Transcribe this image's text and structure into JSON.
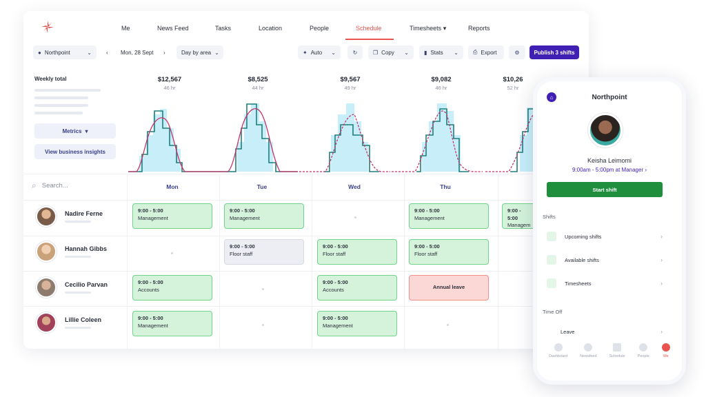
{
  "nav": {
    "items": [
      "Me",
      "News Feed",
      "Tasks",
      "Location",
      "People",
      "Schedule",
      "Timesheets",
      "Reports"
    ],
    "active": "Schedule",
    "timesheets_caret": "▾"
  },
  "toolbar": {
    "location": "Northpoint",
    "date": "Mon, 28 Sept",
    "view": "Day by area",
    "auto": "Auto",
    "copy": "Copy",
    "stats": "Stats",
    "export": "Export",
    "publish": "Publish 3 shifts"
  },
  "metrics": {
    "weekly_total": "Weekly total",
    "metrics_button": "Metrics",
    "insights_button": "View business insights"
  },
  "days": [
    {
      "amount": "$12,567",
      "hours": "46 hr",
      "label": "Mon"
    },
    {
      "amount": "$8,525",
      "hours": "44 hr",
      "label": "Tue"
    },
    {
      "amount": "$9,567",
      "hours": "49 hr",
      "label": "Wed"
    },
    {
      "amount": "$9,082",
      "hours": "46 hr",
      "label": "Thu"
    },
    {
      "amount": "$10,26",
      "hours": "52 hr",
      "label": ""
    }
  ],
  "search": {
    "placeholder": "Search..."
  },
  "people": [
    {
      "name": "Nadire Ferne",
      "color": "#7a5a48"
    },
    {
      "name": "Hannah Gibbs",
      "color": "#c9a27a"
    },
    {
      "name": "Cecilio Parvan",
      "color": "#8d7b6e"
    },
    {
      "name": "Lillie Coleen",
      "color": "#a2415a"
    }
  ],
  "shifts": {
    "r0": {
      "mon": {
        "time": "9:00 - 5:00",
        "role": "Management"
      },
      "tue": {
        "time": "9:00 - 5:00",
        "role": "Management"
      },
      "thu": {
        "time": "9:00 - 5:00",
        "role": "Management"
      },
      "fri": {
        "time": "9:00 - 5:00",
        "role": "Managem"
      }
    },
    "r1": {
      "tue": {
        "time": "9:00 - 5:00",
        "role": "Floor staff"
      },
      "wed": {
        "time": "9:00 - 5:00",
        "role": "Floor staff"
      },
      "thu": {
        "time": "9:00 - 5:00",
        "role": "Floor staff"
      }
    },
    "r2": {
      "mon": {
        "time": "9:00 - 5:00",
        "role": "Accounts"
      },
      "wed": {
        "time": "9:00 - 5:00",
        "role": "Accounts"
      },
      "thu": {
        "label": "Annual leave"
      }
    },
    "r3": {
      "mon": {
        "time": "9:00 - 5:00",
        "role": "Management"
      },
      "wed": {
        "time": "9:00 - 5:00",
        "role": "Management"
      }
    }
  },
  "phone": {
    "location": "Northpoint",
    "name": "Keisha Leimomi",
    "time": "9:00am - 5:00pm at Manager",
    "start": "Start shift",
    "shifts_heading": "Shifts",
    "rows": [
      "Upcoming shifts",
      "Available shifts",
      "Timesheets"
    ],
    "timeoff_heading": "Time Off",
    "leave": "Leave",
    "tabs": [
      "Dashboard",
      "Newsfeed",
      "Schedule",
      "People",
      "Me"
    ]
  },
  "colors": {
    "accent": "#e8544e",
    "primary": "#3f1fb4",
    "shift_green": "#d4f3da",
    "chart_demand": "#c8eefa",
    "chart_staff": "#1c7f7a",
    "chart_forecast": "#c8326a"
  }
}
